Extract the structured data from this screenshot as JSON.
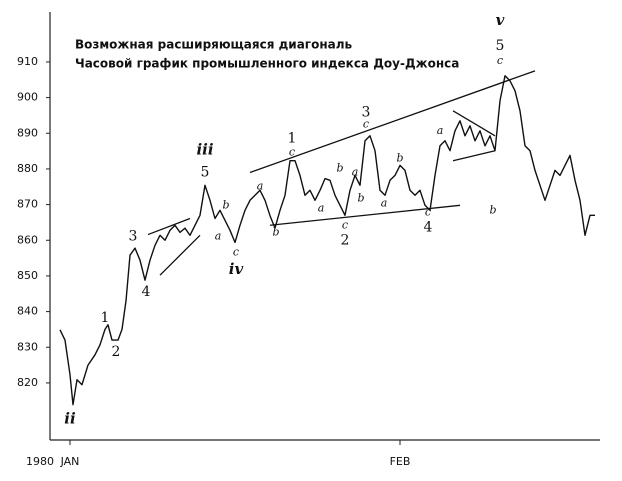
{
  "chart_data": {
    "type": "line",
    "title": "Возможная расширяющаяся диагональ",
    "subtitle": "Часовой график промышленного индекса Доу-Джонса",
    "year_label": "1980",
    "color": "#111111",
    "x": [
      2,
      3,
      4,
      4.6,
      5.4,
      6.4,
      7.6,
      9,
      10,
      11,
      11.6,
      12.4,
      13.6,
      14.4,
      15.2,
      16,
      17,
      18,
      19,
      20,
      21,
      22,
      23,
      24,
      25,
      26,
      27,
      28,
      29,
      30,
      31,
      32,
      33,
      34,
      35,
      36,
      37,
      38,
      39,
      40,
      41,
      42,
      43,
      44,
      45,
      46,
      47,
      48,
      49,
      50,
      51,
      52,
      53,
      54,
      55,
      56,
      57,
      58,
      59,
      60,
      61,
      62,
      63,
      64,
      65,
      66,
      67,
      68,
      69,
      70,
      71,
      72,
      73,
      74,
      75,
      76,
      77,
      78,
      79,
      80,
      81,
      82,
      83,
      84,
      85,
      86,
      87,
      88,
      89,
      90,
      91,
      92,
      93,
      94,
      95,
      96,
      97,
      98,
      99,
      100,
      101,
      102,
      103,
      104,
      105,
      106,
      107,
      108,
      109
    ],
    "values": [
      834.9,
      832,
      822.3,
      813.9,
      820.9,
      819.5,
      825,
      827.9,
      830.7,
      835,
      836.3,
      832,
      832,
      835,
      843,
      855.8,
      857.8,
      854.4,
      848.8,
      854.4,
      858.6,
      861.4,
      860,
      862.8,
      864.2,
      862.2,
      863.4,
      861.4,
      864.2,
      867,
      875.4,
      871.2,
      866.1,
      868.4,
      865.6,
      862.8,
      859.4,
      864.2,
      868.4,
      871.2,
      872.6,
      874,
      871.2,
      866.9,
      863.4,
      868.4,
      872.6,
      882.3,
      882.3,
      878.2,
      872.6,
      874,
      871.2,
      874,
      877.3,
      876.8,
      872.6,
      869.8,
      867,
      874,
      878.2,
      875.4,
      887.9,
      889.3,
      885.1,
      874,
      872.6,
      876.8,
      878.2,
      881,
      879.6,
      874,
      872.6,
      874,
      869.8,
      868.4,
      878.2,
      886.5,
      887.9,
      885.1,
      890.7,
      893.5,
      889.3,
      892.1,
      887.9,
      890.7,
      886.5,
      889.3,
      885.1,
      899.1,
      906.1,
      904.7,
      901.9,
      896.3,
      886.5,
      885.1,
      879.6,
      875.4,
      871.2,
      875.4,
      879.6,
      878.2,
      881,
      883.8,
      876.8,
      871.2,
      861.4,
      867,
      867
    ],
    "xlim": [
      0,
      110
    ],
    "xticks": [
      {
        "value": 4,
        "label": "JAN"
      },
      {
        "value": 70,
        "label": "FEB"
      }
    ],
    "ylim": [
      804,
      924
    ],
    "yticks": [
      820,
      830,
      840,
      850,
      860,
      870,
      880,
      890,
      900,
      910
    ],
    "trendlines": [
      {
        "x": [
          19.6,
          28
        ],
        "y": [
          861.6,
          866.1
        ]
      },
      {
        "x": [
          22,
          30
        ],
        "y": [
          850.2,
          861.4
        ]
      },
      {
        "x": [
          40,
          97
        ],
        "y": [
          879,
          907.5
        ]
      },
      {
        "x": [
          44,
          82
        ],
        "y": [
          864.2,
          869.8
        ]
      },
      {
        "x": [
          80.6,
          89
        ],
        "y": [
          896.3,
          889.3
        ]
      },
      {
        "x": [
          80.6,
          89
        ],
        "y": [
          882.3,
          885.1
        ]
      }
    ],
    "annotations": [
      {
        "text": "ii",
        "x": 4,
        "y": 809.7
      },
      {
        "text": "1",
        "x": 11,
        "y": 838.2
      },
      {
        "text": "2",
        "x": 13.2,
        "y": 828.7
      },
      {
        "text": "3",
        "x": 16.6,
        "y": 861.1
      },
      {
        "text": "4",
        "x": 19.2,
        "y": 845.5
      },
      {
        "text": "iii",
        "x": 31,
        "y": 885.1
      },
      {
        "text": "5",
        "x": 31,
        "y": 879
      },
      {
        "text": "b",
        "x": 35.2,
        "y": 869.8
      },
      {
        "text": "a",
        "x": 33.6,
        "y": 861.1
      },
      {
        "text": "c",
        "x": 37.2,
        "y": 856.6
      },
      {
        "text": "iv",
        "x": 37.2,
        "y": 851.6
      },
      {
        "text": "a",
        "x": 42,
        "y": 875.1
      },
      {
        "text": "b",
        "x": 45.2,
        "y": 862.2
      },
      {
        "text": "1",
        "x": 48.4,
        "y": 888.5
      },
      {
        "text": "c",
        "x": 48.4,
        "y": 884.6
      },
      {
        "text": "a",
        "x": 54.2,
        "y": 868.9
      },
      {
        "text": "b",
        "x": 58,
        "y": 880.1
      },
      {
        "text": "a",
        "x": 61,
        "y": 879
      },
      {
        "text": "b",
        "x": 62.2,
        "y": 871.7
      },
      {
        "text": "c",
        "x": 59,
        "y": 864.2
      },
      {
        "text": "2",
        "x": 59,
        "y": 860
      },
      {
        "text": "3",
        "x": 63.2,
        "y": 895.8
      },
      {
        "text": "c",
        "x": 63.2,
        "y": 892.4
      },
      {
        "text": "b",
        "x": 70,
        "y": 882.9
      },
      {
        "text": "a",
        "x": 66.8,
        "y": 870.3
      },
      {
        "text": "c",
        "x": 75.6,
        "y": 867.8
      },
      {
        "text": "4",
        "x": 75.6,
        "y": 863.6
      },
      {
        "text": "a",
        "x": 78,
        "y": 890.7
      },
      {
        "text": "b",
        "x": 88.6,
        "y": 868.4
      },
      {
        "text": "v",
        "x": 90,
        "y": 921.5
      },
      {
        "text": "5",
        "x": 90,
        "y": 914.5
      },
      {
        "text": "c",
        "x": 90,
        "y": 910.3
      }
    ]
  }
}
